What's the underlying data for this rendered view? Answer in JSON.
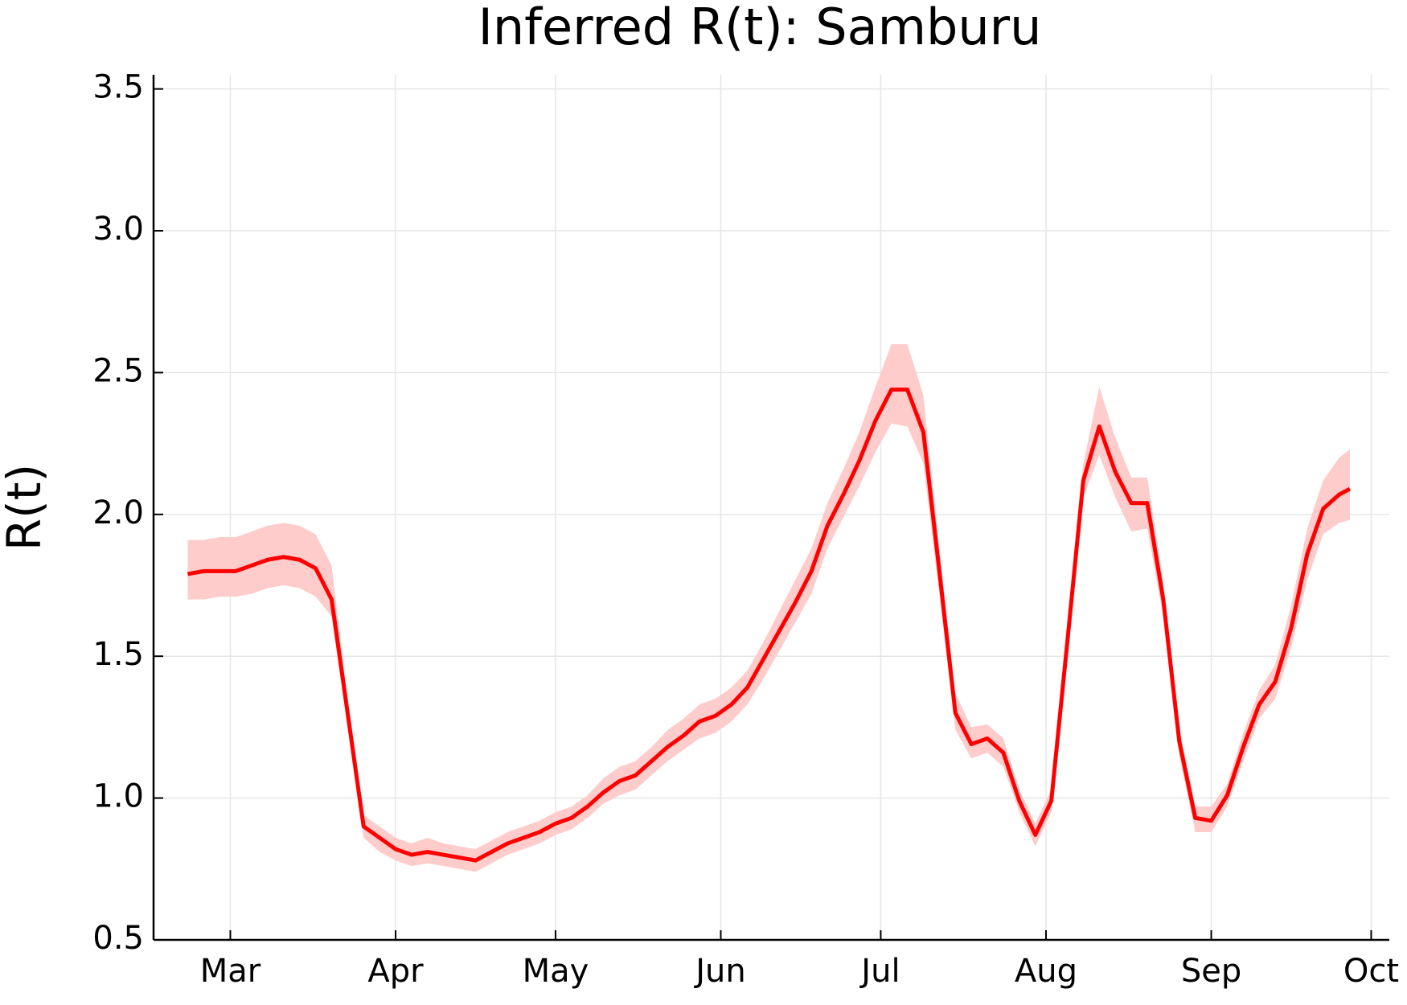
{
  "chart_data": {
    "type": "line",
    "title": "Inferred R(t): Samburu",
    "y_label": "R(t)",
    "grid": true,
    "xlim": [
      -14.4,
      217.4
    ],
    "xticks": [
      {
        "value": 0,
        "label": "Mar"
      },
      {
        "value": 31,
        "label": "Apr"
      },
      {
        "value": 61,
        "label": "May"
      },
      {
        "value": 92,
        "label": "Jun"
      },
      {
        "value": 122,
        "label": "Jul"
      },
      {
        "value": 153,
        "label": "Aug"
      },
      {
        "value": 184,
        "label": "Sep"
      },
      {
        "value": 214,
        "label": "Oct"
      }
    ],
    "ylim": [
      0.5,
      3.55
    ],
    "yticks": [
      0.5,
      {
        "value": 1,
        "label": "1.0"
      },
      1.5,
      {
        "value": 2,
        "label": "2.0"
      },
      2.5,
      {
        "value": 3,
        "label": "3.0"
      },
      3.5
    ],
    "x": [
      -8,
      -5,
      -2,
      1,
      4,
      7,
      10,
      13,
      16,
      19,
      22,
      25,
      28,
      31,
      34,
      37,
      40,
      43,
      46,
      49,
      52,
      55,
      58,
      61,
      64,
      67,
      70,
      73,
      76,
      79,
      82,
      85,
      88,
      91,
      94,
      97,
      100,
      103,
      106,
      109,
      112,
      115,
      118,
      121,
      124,
      127,
      130,
      133,
      136,
      139,
      142,
      145,
      148,
      151,
      154,
      157,
      160,
      163,
      166,
      169,
      172,
      175,
      178,
      181,
      184,
      187,
      190,
      193,
      196,
      199,
      202,
      205,
      208,
      210
    ],
    "series": [
      {
        "color": "#ff0000",
        "band_color": "#ffcccc",
        "values": [
          1.79,
          1.8,
          1.8,
          1.8,
          1.82,
          1.84,
          1.85,
          1.84,
          1.81,
          1.7,
          1.3,
          0.9,
          0.86,
          0.82,
          0.8,
          0.81,
          0.8,
          0.79,
          0.78,
          0.81,
          0.84,
          0.86,
          0.88,
          0.91,
          0.93,
          0.97,
          1.02,
          1.06,
          1.08,
          1.13,
          1.18,
          1.22,
          1.27,
          1.29,
          1.33,
          1.39,
          1.49,
          1.59,
          1.69,
          1.8,
          1.96,
          2.07,
          2.19,
          2.33,
          2.44,
          2.44,
          2.29,
          1.8,
          1.3,
          1.19,
          1.21,
          1.16,
          0.99,
          0.87,
          0.99,
          1.55,
          2.12,
          2.31,
          2.15,
          2.04,
          2.04,
          1.7,
          1.2,
          0.93,
          0.92,
          1.01,
          1.18,
          1.33,
          1.41,
          1.6,
          1.86,
          2.02,
          2.07,
          2.09
        ],
        "upper": [
          1.91,
          1.91,
          1.92,
          1.92,
          1.94,
          1.96,
          1.97,
          1.96,
          1.93,
          1.82,
          1.35,
          0.94,
          0.9,
          0.86,
          0.84,
          0.86,
          0.84,
          0.83,
          0.82,
          0.85,
          0.88,
          0.9,
          0.92,
          0.95,
          0.97,
          1.01,
          1.07,
          1.11,
          1.13,
          1.18,
          1.24,
          1.28,
          1.33,
          1.35,
          1.39,
          1.45,
          1.55,
          1.66,
          1.77,
          1.88,
          2.04,
          2.16,
          2.29,
          2.45,
          2.6,
          2.6,
          2.42,
          1.88,
          1.37,
          1.25,
          1.26,
          1.21,
          1.03,
          0.91,
          1.03,
          1.6,
          2.18,
          2.45,
          2.27,
          2.13,
          2.13,
          1.76,
          1.25,
          0.97,
          0.97,
          1.05,
          1.23,
          1.38,
          1.47,
          1.68,
          1.95,
          2.12,
          2.2,
          2.23
        ],
        "lower": [
          1.7,
          1.7,
          1.71,
          1.71,
          1.72,
          1.74,
          1.75,
          1.74,
          1.71,
          1.64,
          1.25,
          0.86,
          0.81,
          0.78,
          0.76,
          0.77,
          0.76,
          0.75,
          0.74,
          0.77,
          0.8,
          0.82,
          0.84,
          0.87,
          0.89,
          0.93,
          0.98,
          1.01,
          1.03,
          1.08,
          1.13,
          1.17,
          1.21,
          1.23,
          1.27,
          1.33,
          1.42,
          1.52,
          1.62,
          1.72,
          1.88,
          1.99,
          2.1,
          2.22,
          2.32,
          2.31,
          2.18,
          1.72,
          1.24,
          1.14,
          1.16,
          1.11,
          0.95,
          0.83,
          0.95,
          1.5,
          2.06,
          2.21,
          2.06,
          1.94,
          1.95,
          1.64,
          1.15,
          0.88,
          0.88,
          0.97,
          1.13,
          1.28,
          1.35,
          1.53,
          1.77,
          1.93,
          1.97,
          1.98
        ]
      }
    ]
  }
}
